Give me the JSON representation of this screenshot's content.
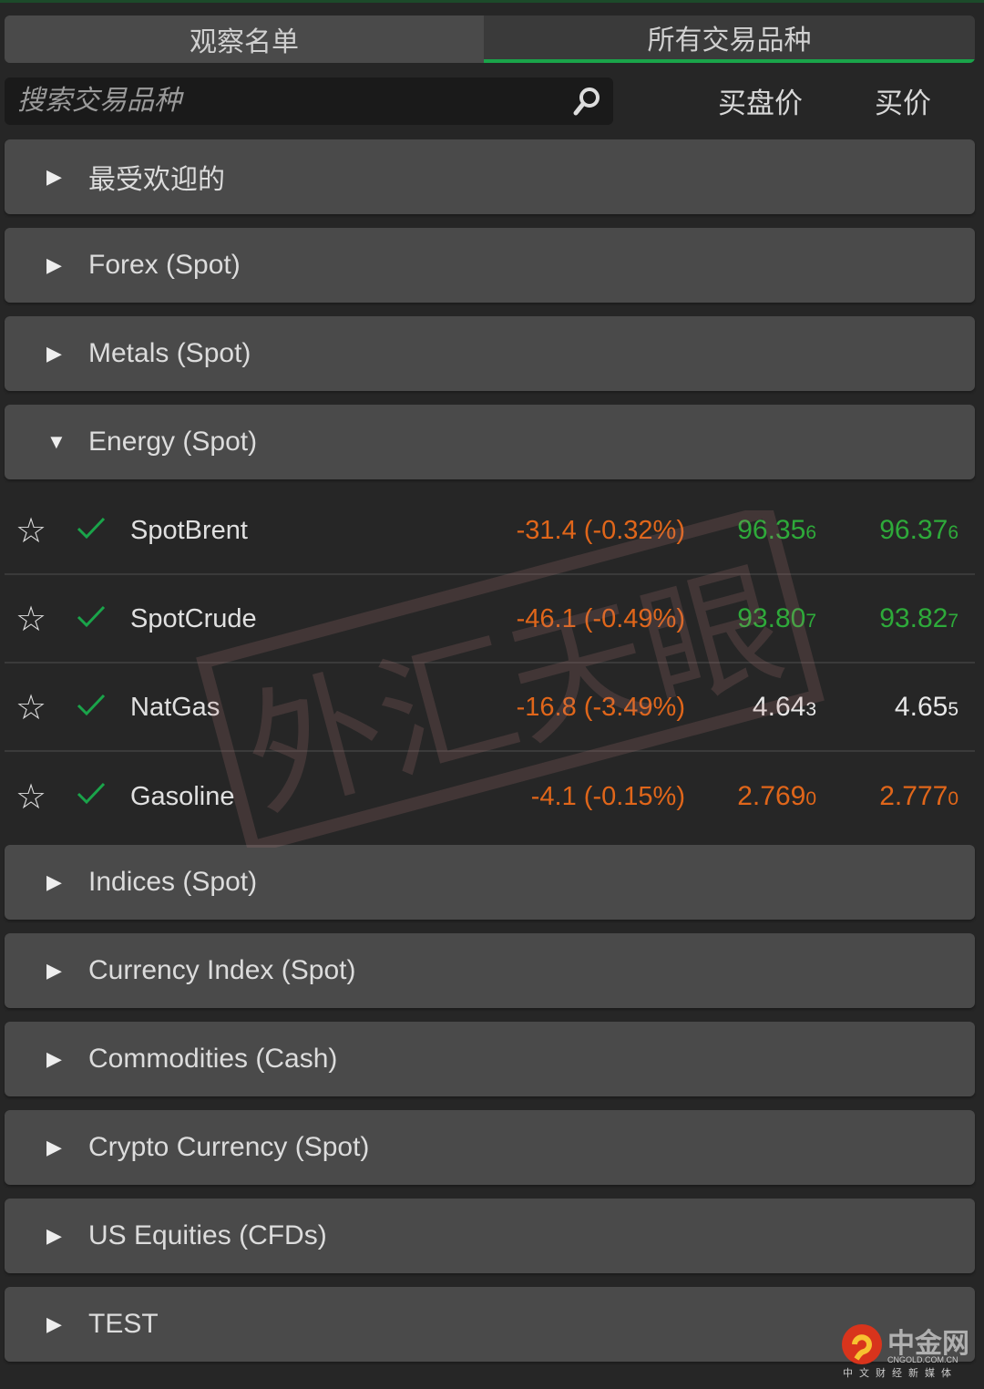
{
  "tabs": [
    {
      "label": "观察名单",
      "active": false
    },
    {
      "label": "所有交易品种",
      "active": true
    }
  ],
  "search": {
    "placeholder": "搜索交易品种",
    "icon": "search-icon"
  },
  "columns": {
    "bid": "买盘价",
    "ask": "买价"
  },
  "groups_before": [
    {
      "label": "最受欢迎的",
      "expanded": false
    },
    {
      "label": "Forex (Spot)",
      "expanded": false
    },
    {
      "label": "Metals (Spot)",
      "expanded": false
    },
    {
      "label": "Energy (Spot)",
      "expanded": true
    }
  ],
  "instruments": [
    {
      "name": "SpotBrent",
      "change": "-31.4 (-0.32%)",
      "bid": "96.35",
      "bid_small": "6",
      "ask": "96.37",
      "ask_small": "6",
      "price_color": "#2eaa3a"
    },
    {
      "name": "SpotCrude",
      "change": "-46.1 (-0.49%)",
      "bid": "93.80",
      "bid_small": "7",
      "ask": "93.82",
      "ask_small": "7",
      "price_color": "#2eaa3a"
    },
    {
      "name": "NatGas",
      "change": "-16.8 (-3.49%)",
      "bid": "4.64",
      "bid_small": "3",
      "ask": "4.65",
      "ask_small": "5",
      "price_color": "#e8e8e8"
    },
    {
      "name": "Gasoline",
      "change": "-4.1 (-0.15%)",
      "bid": "2.769",
      "bid_small": "0",
      "ask": "2.777",
      "ask_small": "0",
      "price_color": "#e0661a"
    }
  ],
  "groups_after": [
    {
      "label": "Indices (Spot)"
    },
    {
      "label": "Currency Index (Spot)"
    },
    {
      "label": "Commodities (Cash)"
    },
    {
      "label": "Crypto Currency (Spot)"
    },
    {
      "label": "US Equities (CFDs)"
    },
    {
      "label": "TEST"
    }
  ],
  "colors": {
    "accent": "#1aa44a",
    "negative": "#e0661a",
    "up": "#2eaa3a"
  },
  "watermark": "外汇天眼",
  "logo": {
    "name": "中金网",
    "domain": "CNGOLD.COM.CN",
    "tagline": "中文财经新媒体"
  }
}
